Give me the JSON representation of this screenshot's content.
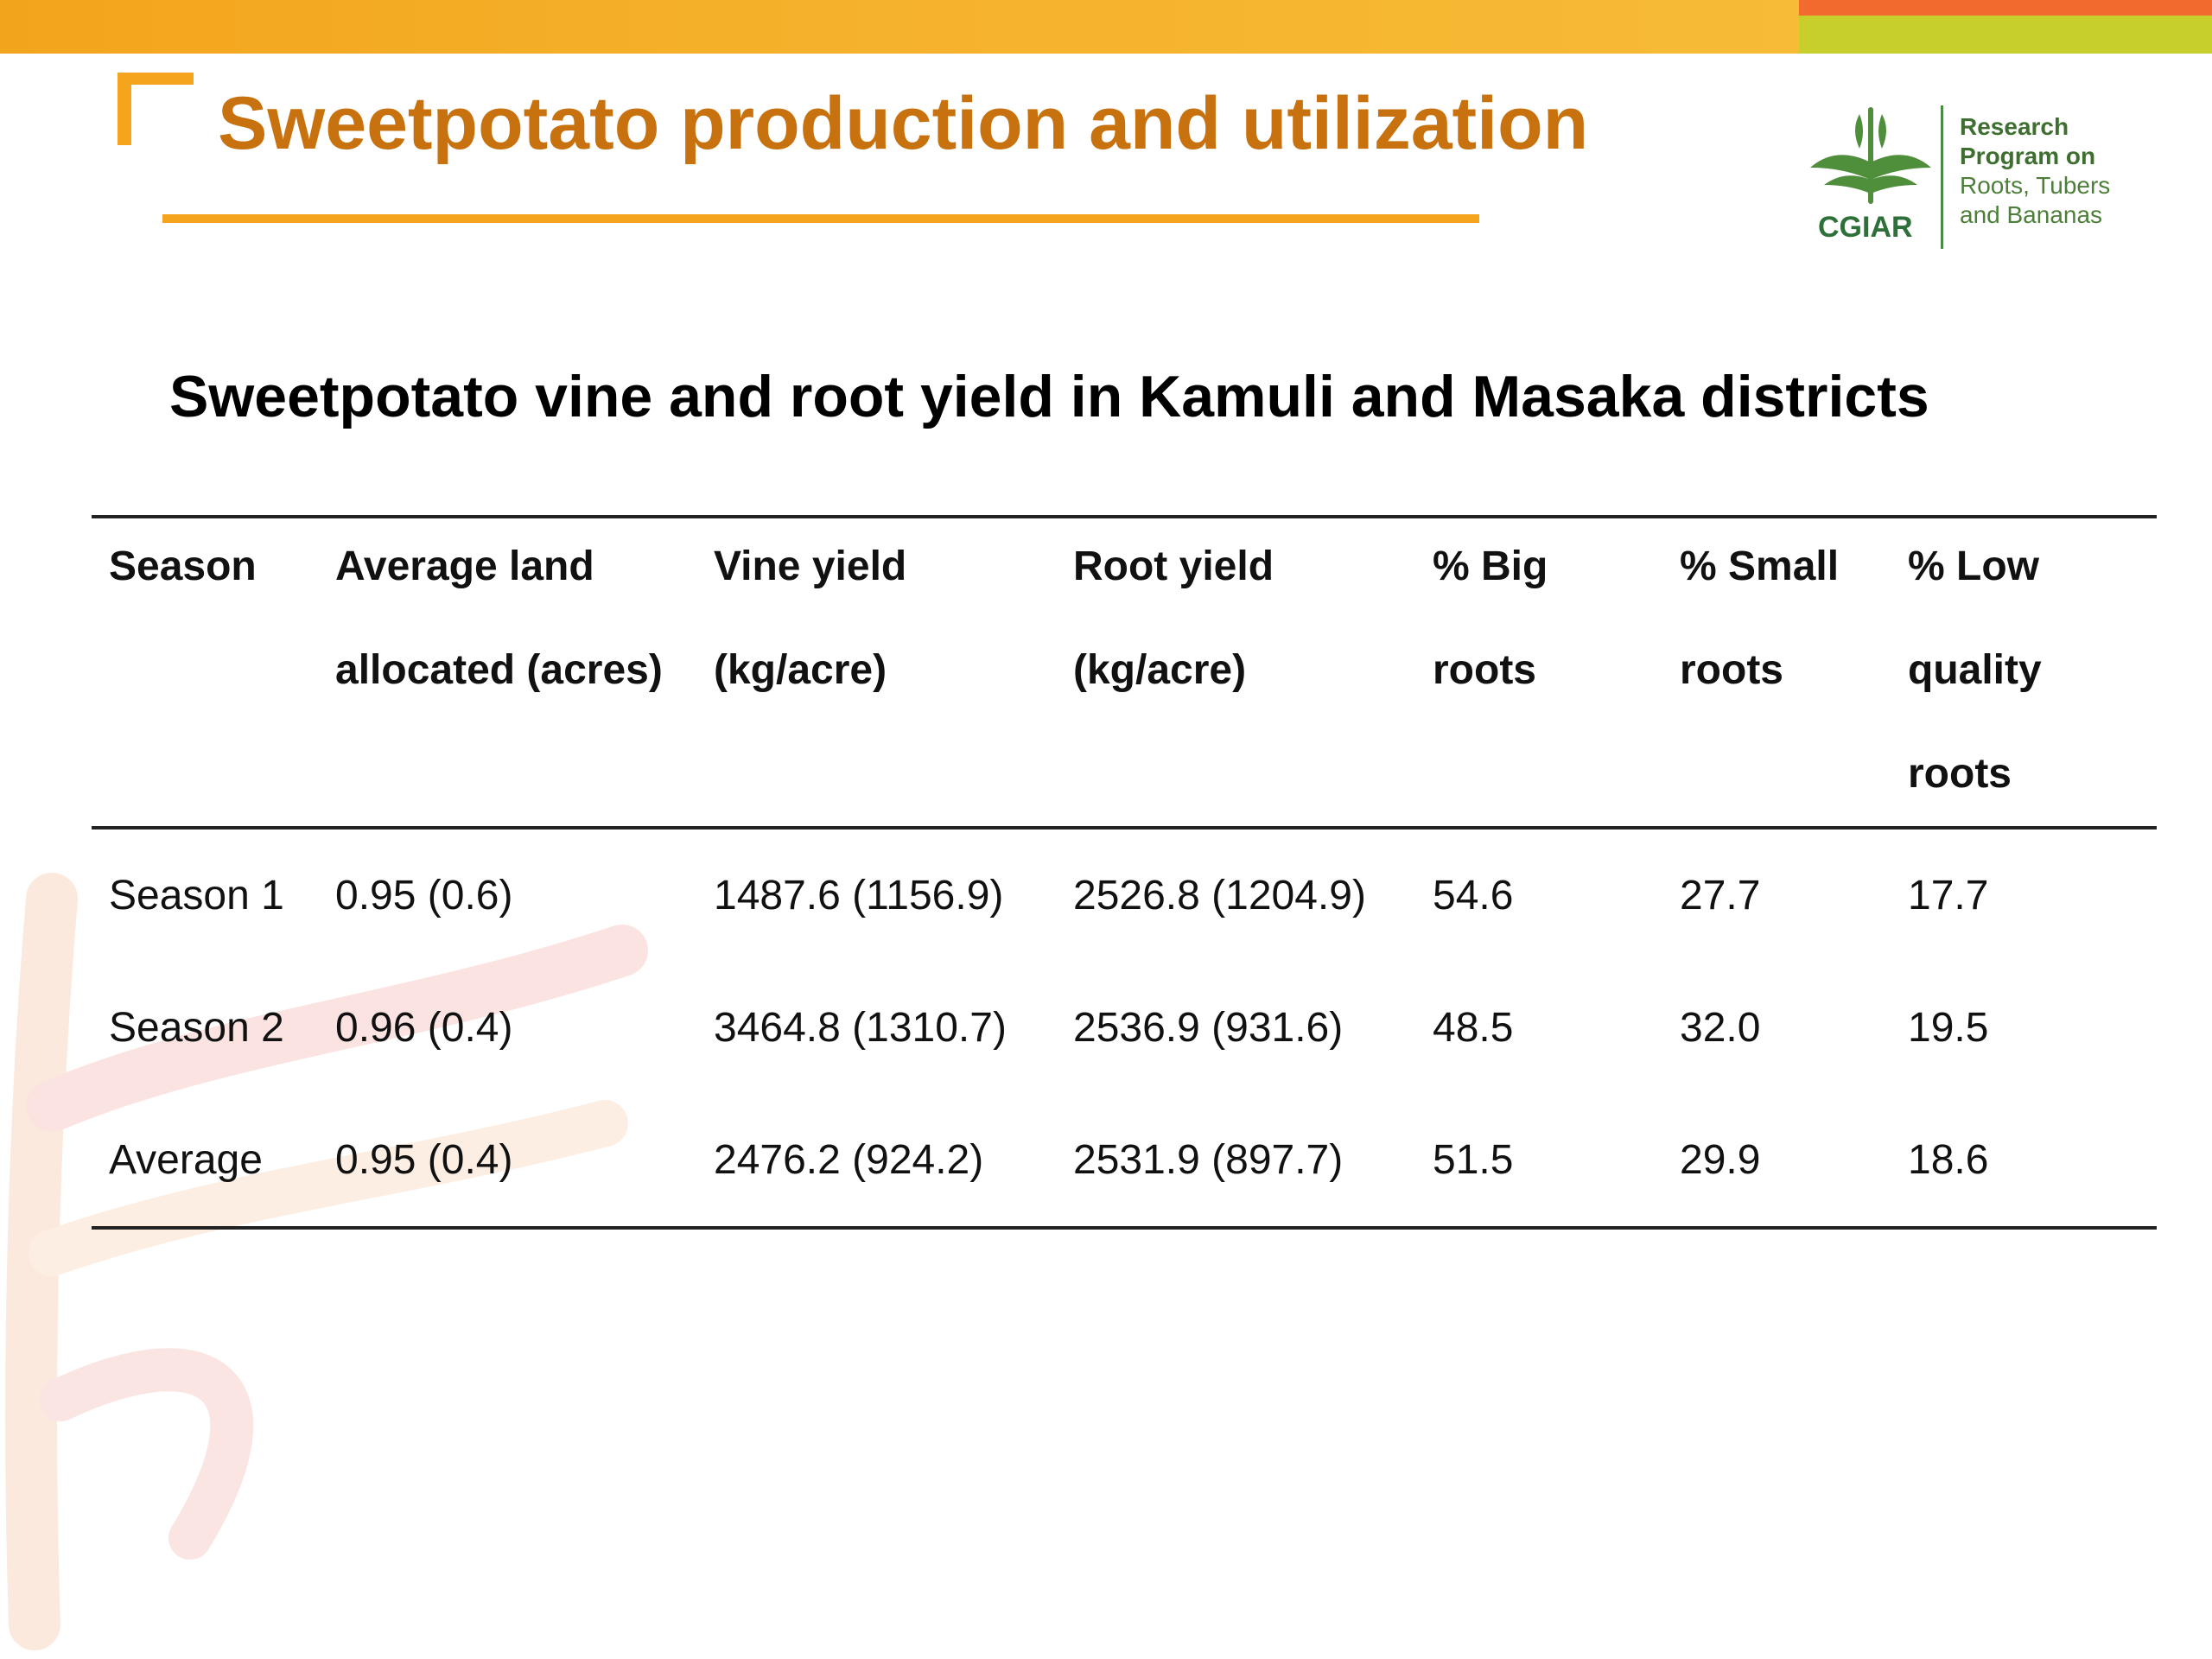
{
  "slide": {
    "title": "Sweetpotato production and utilization",
    "logo": {
      "org": "CGIAR",
      "program_lines": [
        "Research",
        "Program on",
        "Roots, Tubers",
        "and Bananas"
      ]
    },
    "colors": {
      "title": "#c8720f",
      "accent_orange": "#f5a41d",
      "accent_green": "#c7cf2c",
      "accent_red": "#f26a2e"
    }
  },
  "table": {
    "title": "Sweetpotato vine and root yield in Kamuli and Masaka districts",
    "headers": [
      [
        "Season"
      ],
      [
        "Average land",
        "allocated (acres)"
      ],
      [
        "Vine yield",
        "(kg/acre)"
      ],
      [
        "Root yield",
        "(kg/acre)"
      ],
      [
        "% Big",
        "roots"
      ],
      [
        "% Small",
        "roots"
      ],
      [
        "% Low",
        "quality",
        "roots"
      ]
    ],
    "rows": [
      [
        "Season 1",
        "0.95 (0.6)",
        "1487.6 (1156.9)",
        "2526.8 (1204.9)",
        "54.6",
        "27.7",
        "17.7"
      ],
      [
        "Season 2",
        "0.96 (0.4)",
        "3464.8 (1310.7)",
        "2536.9 (931.6)",
        "48.5",
        "32.0",
        "19.5"
      ],
      [
        "Average",
        "0.95 (0.4)",
        "2476.2 (924.2)",
        "2531.9 (897.7)",
        "51.5",
        "29.9",
        "18.6"
      ]
    ]
  }
}
